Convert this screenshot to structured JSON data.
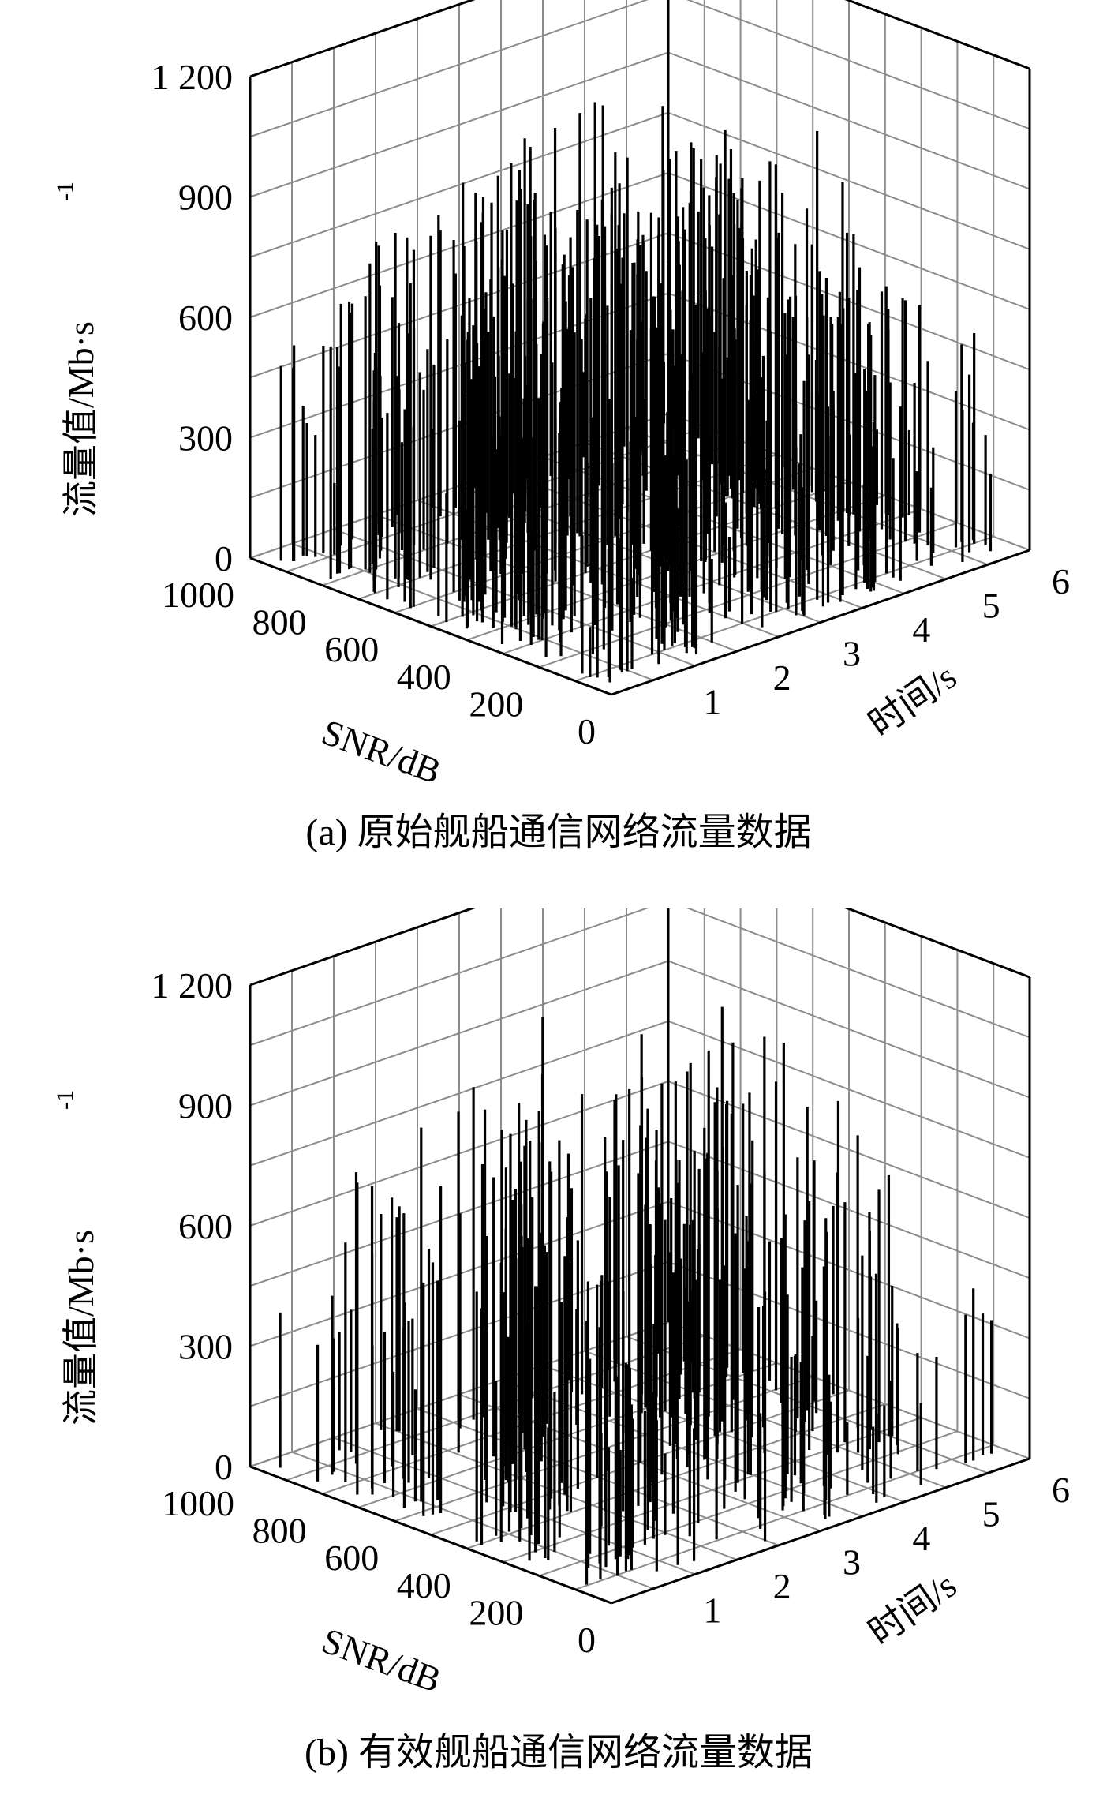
{
  "chart_data": [
    {
      "type": "bar3d",
      "caption": "(a) 原始舰船通信网络流量数据",
      "zlabel": "流量值/Mb·s",
      "zlabel_sup": "-1",
      "xlabel": "SNR/dB",
      "ylabel": "时间/s",
      "z_ticks": [
        "0",
        "300",
        "600",
        "900",
        "1 200"
      ],
      "x_ticks": [
        "0",
        "200",
        "400",
        "600",
        "800",
        "1000"
      ],
      "y_ticks": [
        "1",
        "2",
        "3",
        "4",
        "5",
        "6"
      ],
      "zlim": [
        0,
        1200
      ],
      "xlim": [
        0,
        1000
      ],
      "ylim": [
        0,
        6
      ],
      "grid": true,
      "seed": 11,
      "n_bars": 520,
      "bar_color": "#000000",
      "grid_color": "#8c8c8c"
    },
    {
      "type": "bar3d",
      "caption": "(b) 有效舰船通信网络流量数据",
      "zlabel": "流量值/Mb·s",
      "zlabel_sup": "-1",
      "xlabel": "SNR/dB",
      "ylabel": "时间/s",
      "z_ticks": [
        "0",
        "300",
        "600",
        "900",
        "1 200"
      ],
      "x_ticks": [
        "0",
        "200",
        "400",
        "600",
        "800",
        "1000"
      ],
      "y_ticks": [
        "1",
        "2",
        "3",
        "4",
        "5",
        "6"
      ],
      "zlim": [
        0,
        1200
      ],
      "xlim": [
        0,
        1000
      ],
      "ylim": [
        0,
        6
      ],
      "grid": true,
      "seed": 23,
      "n_bars": 290,
      "bar_color": "#000000",
      "grid_color": "#8c8c8c"
    }
  ]
}
